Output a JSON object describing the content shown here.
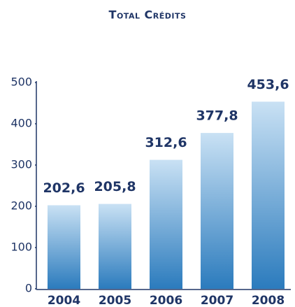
{
  "chart_data": {
    "type": "bar",
    "title": "Total Crédits",
    "categories": [
      "2004",
      "2005",
      "2006",
      "2007",
      "2008"
    ],
    "values": [
      202.6,
      205.8,
      312.6,
      377.8,
      453.6
    ],
    "value_labels": [
      "202,6",
      "205,8",
      "312,6",
      "377,8",
      "453,6"
    ],
    "color": "#2b7bbd",
    "ylim": [
      0,
      500
    ],
    "yticks": [
      0,
      100,
      200,
      300,
      400,
      500
    ]
  }
}
